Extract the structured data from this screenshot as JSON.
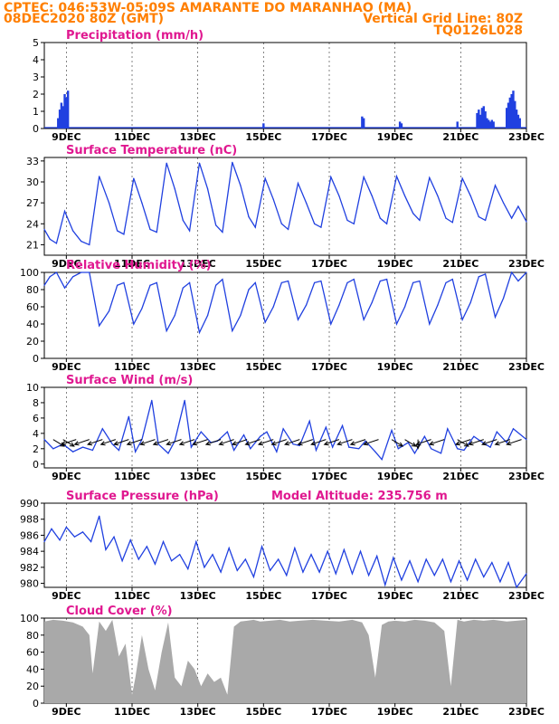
{
  "header": {
    "line1_left": "CPTEC:   046:53W-05:09S   AMARANTE DO MARANHAO (MA)",
    "line2_left": "08DEC2020 80Z (GMT)",
    "line2_right": "Vertical Grid Line: 80Z",
    "line3_right": "TQ0126L028"
  },
  "colors": {
    "header": "#ff7f00",
    "title": "#e01890",
    "line": "#2040e0",
    "cloud": "#a9a9a9",
    "arrow": "#000000"
  },
  "chart_data": [
    {
      "type": "bar",
      "title": "Precipitation  (mm/h)",
      "xlabel": "",
      "ylabel": "",
      "ylim": [
        0,
        5
      ],
      "yticks": [
        0,
        1,
        2,
        3,
        4,
        5
      ],
      "xtick_labels": [
        "9DEC",
        "11DEC",
        "13DEC",
        "15DEC",
        "17DEC",
        "19DEC",
        "21DEC",
        "23DEC"
      ],
      "x_range_days": [
        8.33,
        23.0
      ],
      "x": [
        8.75,
        8.8,
        8.85,
        8.9,
        8.95,
        9.0,
        9.05,
        15.0,
        18.0,
        18.05,
        19.15,
        19.2,
        20.9,
        21.5,
        21.55,
        21.6,
        21.65,
        21.7,
        21.75,
        21.8,
        21.85,
        21.9,
        21.95,
        22.0,
        22.4,
        22.45,
        22.5,
        22.55,
        22.6,
        22.65,
        22.7,
        22.75,
        22.8
      ],
      "values": [
        0.6,
        1.1,
        1.5,
        1.3,
        2.0,
        1.8,
        2.2,
        0.3,
        0.7,
        0.6,
        0.4,
        0.3,
        0.4,
        0.9,
        1.1,
        0.8,
        1.2,
        1.3,
        1.0,
        0.6,
        0.5,
        0.4,
        0.5,
        0.4,
        1.2,
        1.5,
        1.8,
        2.0,
        2.2,
        1.6,
        1.1,
        0.8,
        0.6
      ]
    },
    {
      "type": "line",
      "title": "Surface Temperature (nC)",
      "ylim": [
        19.5,
        33.5
      ],
      "yticks": [
        21,
        24,
        27,
        30,
        33
      ],
      "xtick_labels": [
        "9DEC",
        "11DEC",
        "13DEC",
        "15DEC",
        "17DEC",
        "19DEC",
        "21DEC",
        "23DEC"
      ],
      "x_range_days": [
        8.33,
        23.0
      ],
      "x": [
        8.33,
        8.5,
        8.7,
        8.95,
        9.2,
        9.45,
        9.7,
        10.0,
        10.3,
        10.55,
        10.75,
        11.05,
        11.3,
        11.55,
        11.75,
        12.05,
        12.3,
        12.55,
        12.75,
        13.05,
        13.3,
        13.55,
        13.75,
        14.05,
        14.3,
        14.55,
        14.75,
        15.05,
        15.3,
        15.55,
        15.75,
        16.05,
        16.3,
        16.55,
        16.75,
        17.05,
        17.3,
        17.55,
        17.75,
        18.05,
        18.3,
        18.55,
        18.75,
        19.05,
        19.3,
        19.55,
        19.75,
        20.05,
        20.3,
        20.55,
        20.75,
        21.05,
        21.3,
        21.55,
        21.75,
        22.05,
        22.3,
        22.55,
        22.75,
        23.0
      ],
      "values": [
        23.2,
        21.8,
        21.2,
        25.8,
        23.0,
        21.5,
        21.0,
        30.8,
        27.0,
        23.0,
        22.5,
        30.5,
        27.0,
        23.2,
        22.8,
        32.7,
        29.0,
        24.5,
        23.0,
        32.7,
        29.0,
        23.8,
        22.8,
        32.8,
        29.5,
        25.0,
        23.5,
        30.5,
        27.5,
        24.0,
        23.2,
        29.8,
        27.0,
        24.0,
        23.5,
        30.7,
        28.0,
        24.5,
        24.0,
        30.7,
        28.0,
        24.8,
        24.0,
        30.8,
        28.0,
        25.5,
        24.5,
        30.6,
        28.0,
        24.8,
        24.2,
        30.5,
        28.0,
        25.0,
        24.5,
        29.5,
        27.0,
        24.8,
        26.5,
        24.3
      ]
    },
    {
      "type": "line",
      "title": "Relative Humidity (%)",
      "ylim": [
        0,
        100
      ],
      "yticks": [
        0,
        20,
        40,
        60,
        80,
        100
      ],
      "xtick_labels": [
        "9DEC",
        "11DEC",
        "13DEC",
        "15DEC",
        "17DEC",
        "19DEC",
        "21DEC",
        "23DEC"
      ],
      "x_range_days": [
        8.33,
        23.0
      ],
      "x": [
        8.33,
        8.5,
        8.7,
        8.95,
        9.2,
        9.45,
        9.7,
        10.0,
        10.3,
        10.55,
        10.75,
        11.05,
        11.3,
        11.55,
        11.75,
        12.05,
        12.3,
        12.55,
        12.75,
        13.05,
        13.3,
        13.55,
        13.75,
        14.05,
        14.3,
        14.55,
        14.75,
        15.05,
        15.3,
        15.55,
        15.75,
        16.05,
        16.3,
        16.55,
        16.75,
        17.05,
        17.3,
        17.55,
        17.75,
        18.05,
        18.3,
        18.55,
        18.75,
        19.05,
        19.3,
        19.55,
        19.75,
        20.05,
        20.3,
        20.55,
        20.75,
        21.05,
        21.3,
        21.55,
        21.75,
        22.05,
        22.3,
        22.55,
        22.75,
        23.0
      ],
      "values": [
        85,
        95,
        100,
        82,
        95,
        100,
        100,
        38,
        55,
        85,
        88,
        40,
        58,
        85,
        88,
        32,
        50,
        82,
        88,
        30,
        50,
        85,
        92,
        32,
        50,
        80,
        88,
        42,
        60,
        88,
        90,
        45,
        62,
        88,
        90,
        40,
        62,
        88,
        92,
        45,
        65,
        90,
        92,
        40,
        60,
        88,
        90,
        40,
        62,
        88,
        92,
        45,
        65,
        95,
        98,
        48,
        70,
        100,
        90,
        100
      ]
    },
    {
      "type": "line",
      "title": "Surface Wind (m/s)",
      "ylim": [
        -0.5,
        10
      ],
      "yticks": [
        0,
        2,
        4,
        6,
        8,
        10
      ],
      "xtick_labels": [
        "9DEC",
        "11DEC",
        "13DEC",
        "15DEC",
        "17DEC",
        "19DEC",
        "21DEC",
        "23DEC"
      ],
      "x_range_days": [
        8.33,
        23.0
      ],
      "x": [
        8.33,
        8.6,
        8.9,
        9.2,
        9.5,
        9.8,
        10.1,
        10.4,
        10.6,
        10.9,
        11.1,
        11.3,
        11.6,
        11.8,
        12.1,
        12.3,
        12.6,
        12.8,
        13.1,
        13.4,
        13.6,
        13.9,
        14.1,
        14.4,
        14.6,
        14.9,
        15.1,
        15.4,
        15.6,
        15.9,
        16.1,
        16.4,
        16.6,
        16.9,
        17.1,
        17.4,
        17.6,
        17.9,
        18.1,
        18.4,
        18.6,
        18.9,
        19.1,
        19.4,
        19.6,
        19.9,
        20.1,
        20.4,
        20.6,
        20.9,
        21.1,
        21.4,
        21.6,
        21.9,
        22.1,
        22.4,
        22.6,
        23.0
      ],
      "values": [
        3.2,
        2.0,
        2.6,
        1.6,
        2.2,
        1.8,
        4.6,
        2.6,
        1.8,
        6.2,
        1.6,
        3.2,
        8.3,
        2.6,
        1.4,
        3.0,
        8.3,
        2.2,
        4.2,
        2.8,
        3.0,
        4.2,
        1.8,
        3.8,
        2.0,
        3.6,
        4.2,
        1.6,
        4.6,
        2.6,
        2.4,
        5.6,
        1.8,
        4.8,
        2.2,
        5.0,
        2.2,
        2.0,
        3.0,
        1.6,
        0.6,
        4.4,
        2.0,
        2.8,
        1.4,
        3.6,
        2.0,
        1.4,
        4.6,
        2.0,
        1.8,
        3.6,
        3.0,
        2.2,
        4.2,
        2.8,
        4.6,
        3.2
      ],
      "arrows_x": [
        8.6,
        8.9,
        9.3,
        9.7,
        10.1,
        10.5,
        10.9,
        11.3,
        11.7,
        12.1,
        12.5,
        12.9,
        13.3,
        13.7,
        14.1,
        14.5,
        14.9,
        15.3,
        15.7,
        16.1,
        16.5,
        16.9,
        17.3,
        17.7,
        18.1,
        18.5,
        18.9,
        19.3,
        19.7,
        20.1,
        20.5,
        20.9,
        21.3,
        21.7,
        22.1,
        22.5,
        22.85
      ],
      "arrows_dir": [
        "down-right",
        "down-right",
        "down-left",
        "down-left",
        "down-left",
        "down-left",
        "down-left",
        "down-left",
        "down-left",
        "down-left",
        "down-left",
        "down-left",
        "down-left",
        "down-left",
        "down-left",
        "down-left",
        "down-left",
        "down-left",
        "down-left",
        "down-left",
        "down-left",
        "down-left",
        "down-left",
        "down-left",
        "down-left",
        "down-left",
        "down-right",
        "down-right",
        "down",
        "down-left",
        "down-left",
        "down-right",
        "down-left",
        "down-left",
        "down-left",
        "down-left",
        "down-left"
      ]
    },
    {
      "type": "line",
      "title": "Surface Pressure (hPa)",
      "subtitle": "Model Altitude: 235.756 m",
      "ylim": [
        979.5,
        990
      ],
      "yticks": [
        980,
        982,
        984,
        986,
        988,
        990
      ],
      "xtick_labels": [
        "9DEC",
        "11DEC",
        "13DEC",
        "15DEC",
        "17DEC",
        "19DEC",
        "21DEC",
        "23DEC"
      ],
      "x_range_days": [
        8.33,
        23.0
      ],
      "x": [
        8.33,
        8.55,
        8.8,
        9.0,
        9.25,
        9.5,
        9.75,
        10.0,
        10.2,
        10.45,
        10.7,
        10.95,
        11.2,
        11.45,
        11.7,
        11.95,
        12.2,
        12.45,
        12.7,
        12.95,
        13.2,
        13.45,
        13.7,
        13.95,
        14.2,
        14.45,
        14.7,
        14.95,
        15.2,
        15.45,
        15.7,
        15.95,
        16.2,
        16.45,
        16.7,
        16.95,
        17.2,
        17.45,
        17.7,
        17.95,
        18.2,
        18.45,
        18.7,
        18.95,
        19.2,
        19.45,
        19.7,
        19.95,
        20.2,
        20.45,
        20.7,
        20.95,
        21.2,
        21.45,
        21.7,
        21.95,
        22.2,
        22.45,
        22.7,
        23.0
      ],
      "values": [
        985.2,
        986.8,
        985.4,
        987.0,
        985.8,
        986.4,
        985.2,
        988.4,
        984.2,
        985.8,
        982.8,
        985.4,
        983.0,
        984.6,
        982.4,
        985.2,
        982.8,
        983.6,
        981.8,
        985.2,
        982.0,
        983.6,
        981.4,
        984.4,
        981.6,
        983.0,
        980.8,
        984.6,
        981.6,
        983.0,
        981.0,
        984.4,
        981.4,
        983.6,
        981.4,
        984.0,
        981.2,
        984.2,
        981.2,
        984.0,
        981.0,
        983.4,
        979.8,
        983.2,
        980.4,
        982.8,
        980.2,
        983.0,
        981.0,
        983.0,
        980.2,
        982.8,
        980.4,
        983.0,
        980.8,
        982.6,
        980.2,
        982.6,
        979.4,
        981.2
      ]
    },
    {
      "type": "area",
      "title": "Cloud Cover (%)",
      "ylim": [
        0,
        100
      ],
      "yticks": [
        0,
        20,
        40,
        60,
        80,
        100
      ],
      "xtick_labels": [
        "9DEC",
        "11DEC",
        "13DEC",
        "15DEC",
        "17DEC",
        "19DEC",
        "21DEC",
        "23DEC"
      ],
      "x_range_days": [
        8.33,
        23.0
      ],
      "x": [
        8.33,
        8.6,
        8.9,
        9.2,
        9.5,
        9.7,
        9.8,
        10.0,
        10.2,
        10.4,
        10.6,
        10.8,
        11.0,
        11.1,
        11.3,
        11.5,
        11.7,
        11.9,
        12.1,
        12.3,
        12.5,
        12.7,
        12.9,
        13.1,
        13.3,
        13.5,
        13.7,
        13.9,
        14.1,
        14.3,
        14.5,
        14.7,
        14.9,
        15.2,
        15.5,
        15.8,
        16.1,
        16.5,
        16.9,
        17.3,
        17.7,
        18.0,
        18.2,
        18.4,
        18.6,
        18.8,
        19.0,
        19.3,
        19.6,
        19.9,
        20.2,
        20.5,
        20.7,
        20.9,
        21.1,
        21.4,
        21.7,
        22.0,
        22.4,
        22.7,
        23.0
      ],
      "values": [
        96,
        98,
        97,
        95,
        90,
        80,
        35,
        96,
        85,
        98,
        55,
        70,
        10,
        30,
        80,
        40,
        15,
        60,
        95,
        30,
        20,
        50,
        40,
        20,
        35,
        25,
        30,
        10,
        90,
        96,
        97,
        98,
        96,
        97,
        98,
        96,
        97,
        98,
        97,
        96,
        98,
        95,
        80,
        30,
        92,
        96,
        97,
        96,
        98,
        97,
        95,
        85,
        20,
        98,
        96,
        98,
        97,
        98,
        96,
        97,
        98
      ]
    }
  ]
}
